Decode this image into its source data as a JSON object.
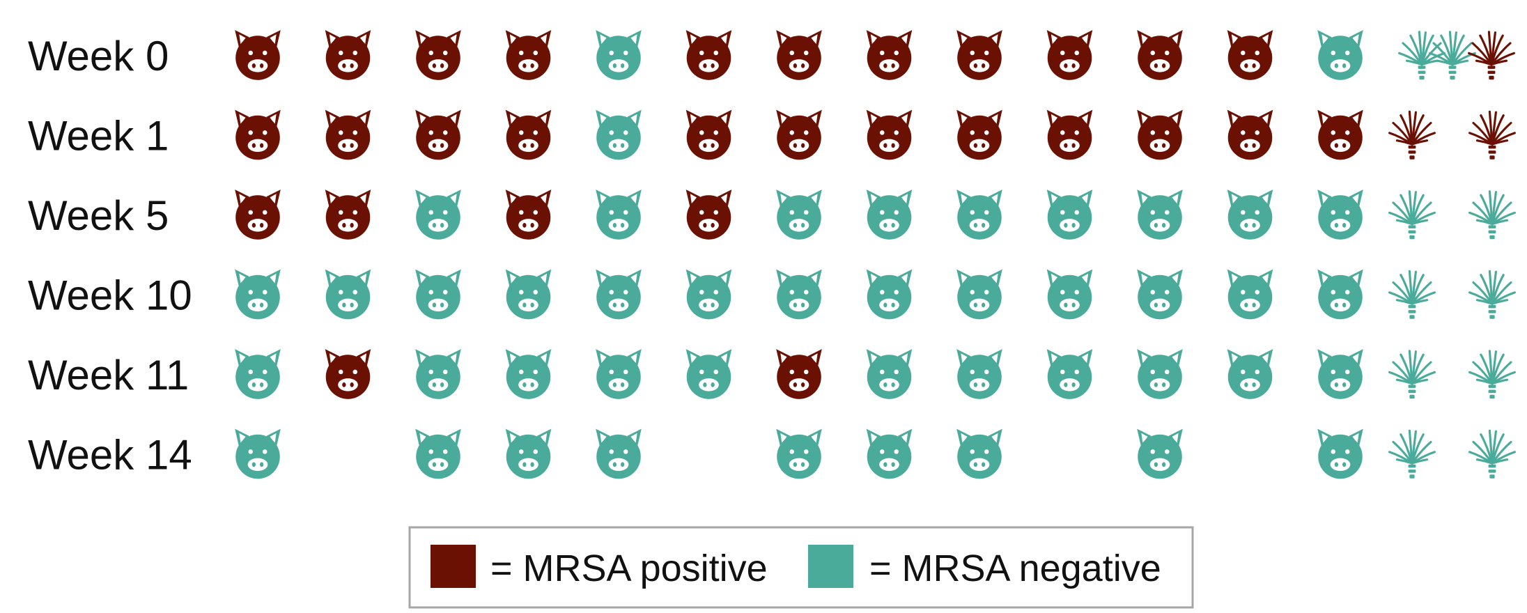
{
  "chart_data": {
    "type": "table",
    "colors": {
      "positive": "#6b1104",
      "negative": "#4aab9b"
    },
    "rows": [
      {
        "label": "Week 0",
        "pigs": [
          "pos",
          "pos",
          "pos",
          "pos",
          "neg",
          "pos",
          "pos",
          "pos",
          "pos",
          "pos",
          "pos",
          "pos",
          "neg"
        ],
        "plants": [
          "neg",
          "neg",
          "pos"
        ]
      },
      {
        "label": "Week 1",
        "pigs": [
          "pos",
          "pos",
          "pos",
          "pos",
          "neg",
          "pos",
          "pos",
          "pos",
          "pos",
          "pos",
          "pos",
          "pos",
          "pos"
        ],
        "plants": [
          "pos",
          "pos"
        ]
      },
      {
        "label": "Week 5",
        "pigs": [
          "pos",
          "pos",
          "neg",
          "pos",
          "neg",
          "pos",
          "neg",
          "neg",
          "neg",
          "neg",
          "neg",
          "neg",
          "neg"
        ],
        "plants": [
          "neg",
          "neg"
        ]
      },
      {
        "label": "Week 10",
        "pigs": [
          "neg",
          "neg",
          "neg",
          "neg",
          "neg",
          "neg",
          "neg",
          "neg",
          "neg",
          "neg",
          "neg",
          "neg",
          "neg"
        ],
        "plants": [
          "neg",
          "neg"
        ]
      },
      {
        "label": "Week 11",
        "pigs": [
          "neg",
          "pos",
          "neg",
          "neg",
          "neg",
          "neg",
          "pos",
          "neg",
          "neg",
          "neg",
          "neg",
          "neg",
          "neg"
        ],
        "plants": [
          "neg",
          "neg"
        ]
      },
      {
        "label": "Week 14",
        "pigs": [
          "neg",
          null,
          "neg",
          "neg",
          "neg",
          null,
          "neg",
          "neg",
          "neg",
          null,
          "neg",
          null,
          "neg"
        ],
        "plants": [
          "neg",
          "neg"
        ]
      }
    ],
    "legend": {
      "position": "bottom-center",
      "items": [
        {
          "key": "positive",
          "label": "= MRSA positive"
        },
        {
          "key": "negative",
          "label": "= MRSA negative"
        }
      ]
    }
  },
  "icons": {
    "animal": "pig-face-icon",
    "plant": "plant-icon"
  }
}
